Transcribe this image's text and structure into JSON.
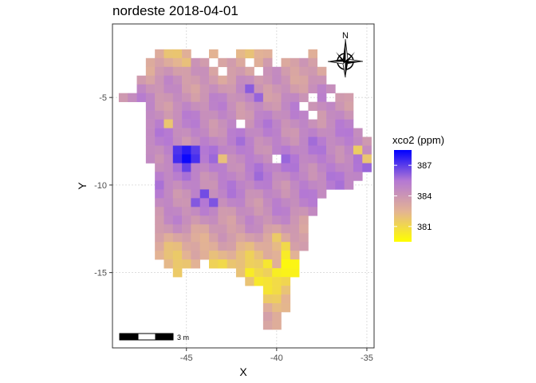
{
  "title": "nordeste 2018-04-01",
  "axes": {
    "x_title": "X",
    "y_title": "Y",
    "x_ticks": [
      {
        "value": -45,
        "label": "-45"
      },
      {
        "value": -40,
        "label": "-40"
      },
      {
        "value": -35,
        "label": "-35"
      }
    ],
    "y_ticks": [
      {
        "value": -5,
        "label": "-5"
      },
      {
        "value": -10,
        "label": "-10"
      },
      {
        "value": -15,
        "label": "-15"
      }
    ]
  },
  "legend": {
    "title": "xco2 (ppm)",
    "labels": [
      {
        "value": 387,
        "label": "387"
      },
      {
        "value": 384,
        "label": "384"
      },
      {
        "value": 381,
        "label": "381"
      }
    ],
    "colors": [
      "#ffff00",
      "#e3b394",
      "#b478d4",
      "#0000ff"
    ]
  },
  "scale_bar": {
    "label": "3 m"
  },
  "north_arrow": {
    "label": "N",
    "icon": "compass-rose-icon"
  },
  "chart_data": {
    "type": "heatmap",
    "title": "nordeste 2018-04-01",
    "xlabel": "X",
    "ylabel": "Y",
    "xlim": [
      -49.1,
      -34.6
    ],
    "ylim": [
      -19.3,
      -0.8
    ],
    "cell_size": 0.5,
    "color_scale": {
      "min": 379.5,
      "max": 388.5,
      "low": "#ffff00",
      "mid": "#b478d4",
      "high": "#0000ff"
    },
    "grid": true,
    "legend_position": "right",
    "rows": [
      {
        "y": -2.5,
        "x_ranges": [
          [
            -46.5,
            -45.0
          ],
          [
            -43.5,
            -43.5
          ],
          [
            -42.0,
            -40.5
          ],
          [
            -38.0,
            -38.0
          ]
        ],
        "v": 382.6
      },
      {
        "y": -3.0,
        "x_ranges": [
          [
            -47.0,
            -44.0
          ],
          [
            -43.0,
            -43.0
          ],
          [
            -42.5,
            -38.0
          ]
        ],
        "v": 383.2
      },
      {
        "y": -3.5,
        "x_ranges": [
          [
            -47.0,
            -43.5
          ],
          [
            -42.5,
            -41.5
          ],
          [
            -40.5,
            -37.5
          ]
        ],
        "v": 383.6
      },
      {
        "y": -4.0,
        "x_ranges": [
          [
            -47.5,
            -37.5
          ]
        ],
        "v": 383.9
      },
      {
        "y": -4.5,
        "x_ranges": [
          [
            -47.5,
            -37.0
          ]
        ],
        "v": 384.1
      },
      {
        "y": -5.0,
        "x_ranges": [
          [
            -48.5,
            -38.5
          ],
          [
            -37.5,
            -36.0
          ]
        ],
        "v": 384.3
      },
      {
        "y": -5.5,
        "x_ranges": [
          [
            -47.0,
            -36.0
          ]
        ],
        "v": 384.4
      },
      {
        "y": -6.0,
        "x_ranges": [
          [
            -47.0,
            -36.0
          ]
        ],
        "v": 384.5
      },
      {
        "y": -6.5,
        "x_ranges": [
          [
            -47.0,
            -36.0
          ]
        ],
        "v": 384.6
      },
      {
        "y": -7.0,
        "x_ranges": [
          [
            -47.0,
            -35.5
          ]
        ],
        "v": 384.7
      },
      {
        "y": -7.5,
        "x_ranges": [
          [
            -47.0,
            -35.0
          ]
        ],
        "v": 384.8
      },
      {
        "y": -8.0,
        "x_ranges": [
          [
            -47.0,
            -35.0
          ]
        ],
        "v": 384.9
      },
      {
        "y": -8.5,
        "x_ranges": [
          [
            -47.0,
            -35.0
          ]
        ],
        "v": 385.0
      },
      {
        "y": -9.0,
        "x_ranges": [
          [
            -46.5,
            -35.0
          ]
        ],
        "v": 385.0
      },
      {
        "y": -9.5,
        "x_ranges": [
          [
            -46.5,
            -35.5
          ]
        ],
        "v": 384.9
      },
      {
        "y": -10.0,
        "x_ranges": [
          [
            -46.5,
            -36.0
          ]
        ],
        "v": 384.8
      },
      {
        "y": -10.5,
        "x_ranges": [
          [
            -46.5,
            -37.5
          ]
        ],
        "v": 384.7
      },
      {
        "y": -11.0,
        "x_ranges": [
          [
            -46.5,
            -38.0
          ]
        ],
        "v": 384.6
      },
      {
        "y": -11.5,
        "x_ranges": [
          [
            -46.5,
            -38.0
          ]
        ],
        "v": 384.4
      },
      {
        "y": -12.0,
        "x_ranges": [
          [
            -46.5,
            -38.5
          ]
        ],
        "v": 384.2
      },
      {
        "y": -12.5,
        "x_ranges": [
          [
            -46.5,
            -38.5
          ]
        ],
        "v": 383.8
      },
      {
        "y": -13.0,
        "x_ranges": [
          [
            -46.5,
            -38.5
          ]
        ],
        "v": 383.3
      },
      {
        "y": -13.5,
        "x_ranges": [
          [
            -46.5,
            -38.5
          ]
        ],
        "v": 382.8
      },
      {
        "y": -14.0,
        "x_ranges": [
          [
            -46.5,
            -44.0
          ],
          [
            -43.5,
            -39.0
          ]
        ],
        "v": 382.3
      },
      {
        "y": -14.5,
        "x_ranges": [
          [
            -46.0,
            -44.5
          ],
          [
            -43.5,
            -39.0
          ]
        ],
        "v": 381.8
      },
      {
        "y": -15.0,
        "x_ranges": [
          [
            -45.5,
            -45.5
          ],
          [
            -42.0,
            -39.0
          ]
        ],
        "v": 381.2
      },
      {
        "y": -15.5,
        "x_ranges": [
          [
            -41.5,
            -39.5
          ]
        ],
        "v": 381.0
      },
      {
        "y": -16.0,
        "x_ranges": [
          [
            -40.5,
            -39.5
          ]
        ],
        "v": 381.5
      },
      {
        "y": -16.5,
        "x_ranges": [
          [
            -40.5,
            -39.5
          ]
        ],
        "v": 382.0
      },
      {
        "y": -17.0,
        "x_ranges": [
          [
            -40.5,
            -39.5
          ]
        ],
        "v": 382.3
      },
      {
        "y": -17.5,
        "x_ranges": [
          [
            -40.5,
            -40.0
          ]
        ],
        "v": 382.5
      },
      {
        "y": -18.0,
        "x_ranges": [
          [
            -40.5,
            -40.0
          ]
        ],
        "v": 382.6
      }
    ],
    "holes": [
      [
        -42.0,
        -6.5
      ],
      [
        -38.5,
        -5.5
      ],
      [
        -40.0,
        -3.0
      ],
      [
        -38.0,
        -6.0
      ],
      [
        -40.0,
        -8.5
      ],
      [
        -37.0,
        -5.0
      ],
      [
        -41.5,
        -3.0
      ]
    ],
    "hot_spots": [
      {
        "x": -45.0,
        "y": -8.5,
        "v": 388.3
      },
      {
        "x": -45.5,
        "y": -8.0,
        "v": 387.2
      },
      {
        "x": -44.5,
        "y": -8.0,
        "v": 387.0
      },
      {
        "x": -45.0,
        "y": -8.0,
        "v": 387.8
      },
      {
        "x": -45.5,
        "y": -8.5,
        "v": 387.4
      },
      {
        "x": -44.5,
        "y": -8.5,
        "v": 387.3
      },
      {
        "x": -45.0,
        "y": -9.0,
        "v": 386.8
      },
      {
        "x": -44.0,
        "y": -10.5,
        "v": 386.6
      },
      {
        "x": -43.5,
        "y": -11.0,
        "v": 386.4
      },
      {
        "x": -44.5,
        "y": -11.0,
        "v": 386.3
      },
      {
        "x": -41.5,
        "y": -4.5,
        "v": 386.2
      },
      {
        "x": -41.0,
        "y": -5.0,
        "v": 386.0
      },
      {
        "x": -38.0,
        "y": -7.5,
        "v": 385.8
      },
      {
        "x": -39.5,
        "y": -14.5,
        "v": 379.8
      },
      {
        "x": -39.0,
        "y": -14.5,
        "v": 379.9
      },
      {
        "x": -39.5,
        "y": -15.0,
        "v": 380.0
      },
      {
        "x": -39.0,
        "y": -15.0,
        "v": 380.0
      },
      {
        "x": -40.0,
        "y": -15.0,
        "v": 380.2
      },
      {
        "x": -39.5,
        "y": -14.0,
        "v": 380.3
      },
      {
        "x": -40.5,
        "y": -14.5,
        "v": 380.5
      },
      {
        "x": -41.5,
        "y": -15.0,
        "v": 380.3
      },
      {
        "x": -41.0,
        "y": -15.5,
        "v": 380.4
      },
      {
        "x": -40.5,
        "y": -15.5,
        "v": 380.6
      },
      {
        "x": -39.5,
        "y": -13.5,
        "v": 381.0
      },
      {
        "x": -40.0,
        "y": -13.0,
        "v": 381.6
      },
      {
        "x": -35.5,
        "y": -8.0,
        "v": 381.5
      },
      {
        "x": -35.0,
        "y": -8.5,
        "v": 381.8
      },
      {
        "x": -46.0,
        "y": -6.5,
        "v": 381.8
      },
      {
        "x": -43.0,
        "y": -8.5,
        "v": 382.0
      },
      {
        "x": -47.5,
        "y": -5.5,
        "v": 382.2
      },
      {
        "x": -45.0,
        "y": -3.0,
        "v": 382.0
      },
      {
        "x": -44.5,
        "y": -2.5,
        "v": 382.2
      },
      {
        "x": -40.0,
        "y": -17.5,
        "v": 382.8
      },
      {
        "x": -40.0,
        "y": -18.0,
        "v": 382.8
      }
    ]
  }
}
